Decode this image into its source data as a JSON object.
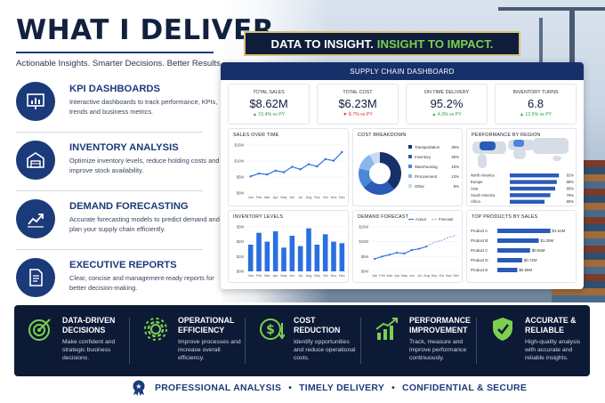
{
  "header": {
    "title": "WHAT I DELIVER",
    "tagline": "Actionable Insights. Smarter Decisions. Better Results."
  },
  "services": [
    {
      "icon": "presentation-chart-icon",
      "title": "KPI DASHBOARDS",
      "description": "Interactive dashboards to track performance, KPIs, trends and business metrics."
    },
    {
      "icon": "warehouse-icon",
      "title": "INVENTORY ANALYSIS",
      "description": "Optimize inventory levels, reduce holding costs and improve stock availability."
    },
    {
      "icon": "trend-up-icon",
      "title": "DEMAND FORECASTING",
      "description": "Accurate forecasting models to predict demand and plan your supply chain efficiently."
    },
    {
      "icon": "report-document-icon",
      "title": "EXECUTIVE REPORTS",
      "description": "Clear, concise and management-ready reports for better decision-making."
    }
  ],
  "banner": {
    "part1": "DATA TO INSIGHT.",
    "part2": "INSIGHT TO IMPACT."
  },
  "dashboard": {
    "title": "SUPPLY CHAIN DASHBOARD",
    "kpis": [
      {
        "label": "TOTAL SALES",
        "value": "$8.62M",
        "delta": "▲ 15.4% vs PY",
        "trend": "up"
      },
      {
        "label": "TOTAL COST",
        "value": "$6.23M",
        "delta": "▼ 8.7% vs PY",
        "trend": "down"
      },
      {
        "label": "ON TIME DELIVERY",
        "value": "95.2%",
        "delta": "▲ 4.3% vs PY",
        "trend": "up"
      },
      {
        "label": "INVENTORY TURNS",
        "value": "6.8",
        "delta": "▲ 12.5% vs PY",
        "trend": "up"
      }
    ],
    "months": [
      "Jan",
      "Feb",
      "Mar",
      "Apr",
      "May",
      "Jun",
      "Jul",
      "Aug",
      "Sep",
      "Oct",
      "Nov",
      "Dec"
    ],
    "sales_over_time": {
      "title": "SALES OVER TIME",
      "y_ticks": [
        "$15M",
        "$10M",
        "$5M",
        "$0M"
      ],
      "values": [
        5.2,
        6.1,
        5.8,
        7.0,
        6.5,
        8.2,
        7.4,
        9.0,
        8.3,
        10.6,
        10.1,
        12.8
      ]
    },
    "cost_breakdown": {
      "title": "COST BREAKDOWN",
      "items": [
        {
          "label": "Transportation",
          "pct": "38%",
          "value": 38,
          "color": "#16306a"
        },
        {
          "label": "Inventory",
          "pct": "25%",
          "value": 25,
          "color": "#2a5bb8"
        },
        {
          "label": "Warehousing",
          "pct": "15%",
          "value": 15,
          "color": "#4a86d9"
        },
        {
          "label": "Procurement",
          "pct": "13%",
          "value": 13,
          "color": "#8ab4ec"
        },
        {
          "label": "Other",
          "pct": "8%",
          "value": 8,
          "color": "#c8daf5"
        }
      ]
    },
    "performance_by_region": {
      "title": "PERFORMANCE BY REGION",
      "items": [
        {
          "label": "North America",
          "pct": "92%",
          "value": 92
        },
        {
          "label": "Europe",
          "pct": "88%",
          "value": 88
        },
        {
          "label": "Asia",
          "pct": "85%",
          "value": 85
        },
        {
          "label": "South America",
          "pct": "76%",
          "value": 76
        },
        {
          "label": "Africa",
          "pct": "65%",
          "value": 65
        }
      ]
    },
    "inventory_levels": {
      "title": "INVENTORY LEVELS",
      "y_ticks": [
        "$3M",
        "$2M",
        "$1M",
        "$0M"
      ],
      "values": [
        1.8,
        2.6,
        2.0,
        2.7,
        1.6,
        2.4,
        1.7,
        2.9,
        1.8,
        2.5,
        2.0,
        1.9
      ]
    },
    "demand_forecast": {
      "title": "DEMAND FORECAST",
      "legend": [
        "Actual",
        "Forecast"
      ],
      "y_ticks": [
        "$15M",
        "$10M",
        "$5M",
        "$0M"
      ],
      "actual": [
        4.2,
        5.0,
        5.6,
        6.3,
        6.0,
        7.2,
        7.6,
        8.4
      ],
      "forecast": [
        null,
        null,
        null,
        null,
        null,
        null,
        null,
        8.4,
        9.8,
        10.4,
        11.5,
        12.2
      ]
    },
    "top_products": {
      "title": "TOP PRODUCTS BY SALES",
      "items": [
        {
          "label": "Product A",
          "value_label": "$1.54M",
          "value": 1.54
        },
        {
          "label": "Product B",
          "value_label": "$1.20M",
          "value": 1.2
        },
        {
          "label": "Product C",
          "value_label": "$0.95M",
          "value": 0.95
        },
        {
          "label": "Product D",
          "value_label": "$0.72M",
          "value": 0.72
        },
        {
          "label": "Product E",
          "value_label": "$0.58M",
          "value": 0.58
        }
      ]
    }
  },
  "benefits": [
    {
      "icon": "target-icon",
      "title": "DATA-DRIVEN\nDECISIONS",
      "description": "Make confident and strategic business decisions."
    },
    {
      "icon": "gear-icon",
      "title": "OPERATIONAL\nEFFICIENCY",
      "description": "Improve processes and increase overall efficiency."
    },
    {
      "icon": "dollar-down-icon",
      "title": "COST\nREDUCTION",
      "description": "Identify opportunities and reduce operational costs."
    },
    {
      "icon": "bar-growth-icon",
      "title": "PERFORMANCE\nIMPROVEMENT",
      "description": "Track, measure and improve performance continuously."
    },
    {
      "icon": "shield-check-icon",
      "title": "ACCURATE &\nRELIABLE",
      "description": "High-quality analysis with accurate and reliable insights."
    }
  ],
  "footer": {
    "icon": "award-badge-icon",
    "items": [
      "PROFESSIONAL ANALYSIS",
      "TIMELY DELIVERY",
      "CONFIDENTIAL & SECURE"
    ]
  },
  "colors": {
    "navy": "#0d1a35",
    "brand_blue": "#1b3a7a",
    "accent_green": "#7bd04f",
    "chart_blue": "#2a6fe0"
  }
}
